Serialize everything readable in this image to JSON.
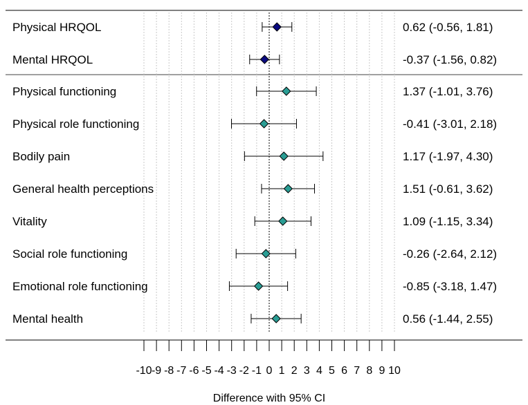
{
  "chart_data": {
    "type": "forest",
    "xlabel": "Difference with 95% CI",
    "xlim": [
      -10,
      10
    ],
    "x_ticks": [
      -10,
      -9,
      -8,
      -7,
      -6,
      -5,
      -4,
      -3,
      -2,
      -1,
      0,
      1,
      2,
      3,
      4,
      5,
      6,
      7,
      8,
      9,
      10
    ],
    "x_tick_labels": [
      "-10",
      "-9",
      "-8",
      "-7",
      "-6",
      "-5",
      "-4",
      "-3",
      "-2",
      "-1",
      "0",
      "1",
      "2",
      "3",
      "4",
      "5",
      "6",
      "7",
      "8",
      "9",
      "10"
    ],
    "reference_line": 0,
    "vertical_grid": true,
    "groups": [
      {
        "marker_color": "#0a0a80",
        "rows": [
          {
            "label": "Physical HRQOL",
            "estimate": 0.62,
            "lower": -0.56,
            "upper": 1.81,
            "ci_text": "0.62 (-0.56, 1.81)"
          },
          {
            "label": "Mental HRQOL",
            "estimate": -0.37,
            "lower": -1.56,
            "upper": 0.82,
            "ci_text": "-0.37 (-1.56, 0.82)"
          }
        ]
      },
      {
        "marker_color": "#2a9d94",
        "rows": [
          {
            "label": "Physical functioning",
            "estimate": 1.37,
            "lower": -1.01,
            "upper": 3.76,
            "ci_text": "1.37 (-1.01, 3.76)"
          },
          {
            "label": "Physical role functioning",
            "estimate": -0.41,
            "lower": -3.01,
            "upper": 2.18,
            "ci_text": "-0.41 (-3.01, 2.18)"
          },
          {
            "label": "Bodily pain",
            "estimate": 1.17,
            "lower": -1.97,
            "upper": 4.3,
            "ci_text": "1.17 (-1.97, 4.30)"
          },
          {
            "label": "General health perceptions",
            "estimate": 1.51,
            "lower": -0.61,
            "upper": 3.62,
            "ci_text": "1.51 (-0.61, 3.62)"
          },
          {
            "label": "Vitality",
            "estimate": 1.09,
            "lower": -1.15,
            "upper": 3.34,
            "ci_text": "1.09 (-1.15, 3.34)"
          },
          {
            "label": "Social role functioning",
            "estimate": -0.26,
            "lower": -2.64,
            "upper": 2.12,
            "ci_text": "-0.26 (-2.64, 2.12)"
          },
          {
            "label": "Emotional role functioning",
            "estimate": -0.85,
            "lower": -3.18,
            "upper": 1.47,
            "ci_text": "-0.85 (-3.18, 1.47)"
          },
          {
            "label": "Mental health",
            "estimate": 0.56,
            "lower": -1.44,
            "upper": 2.55,
            "ci_text": "0.56 (-1.44, 2.55)"
          }
        ]
      }
    ]
  }
}
